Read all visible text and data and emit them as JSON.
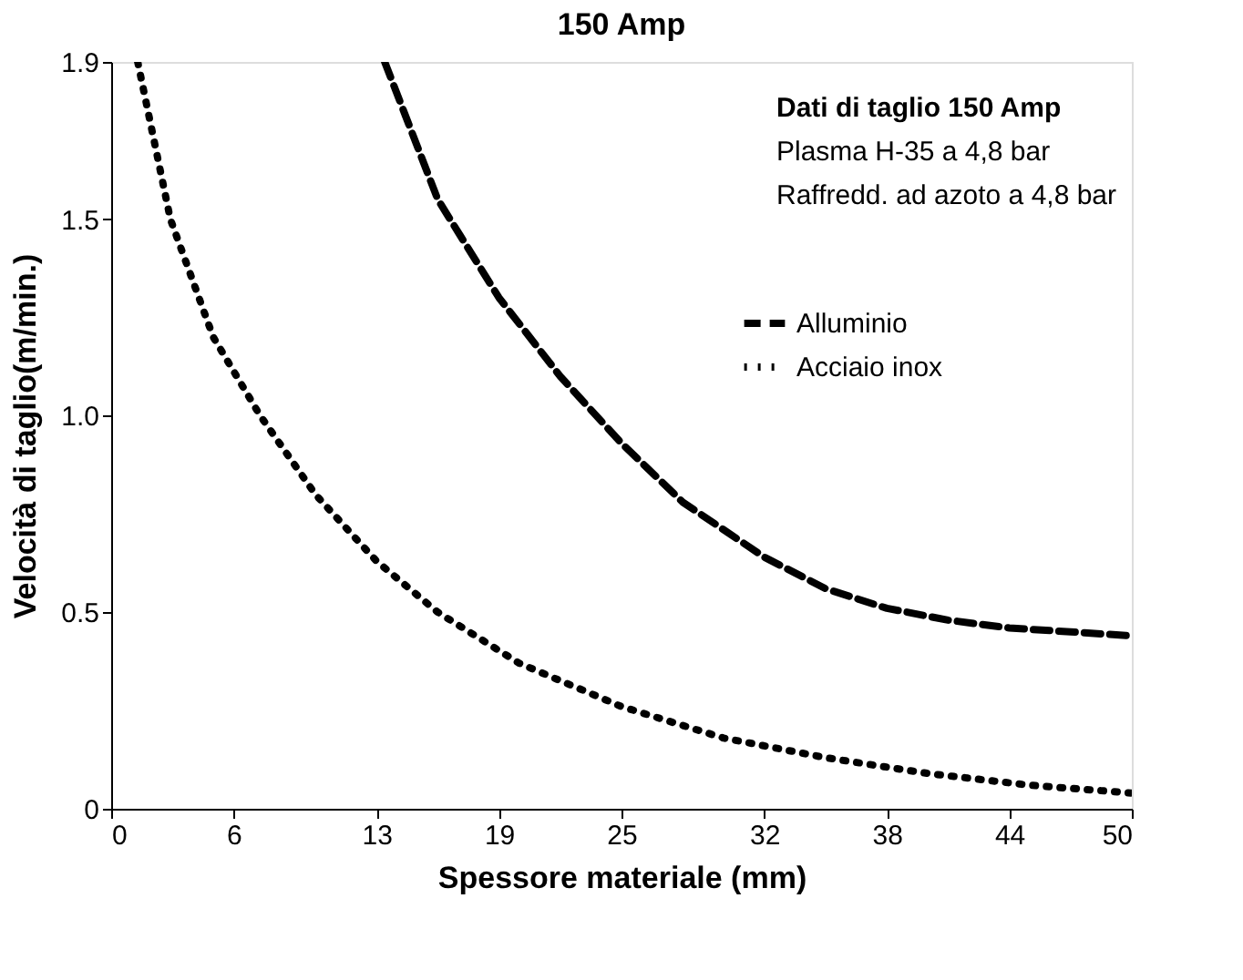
{
  "chart_data": {
    "type": "line",
    "title": "150 Amp",
    "xlabel": "Spessore materiale (mm)",
    "ylabel": "Velocità di taglio(m/min.)",
    "xlim": [
      0,
      50
    ],
    "ylim": [
      0,
      1.9
    ],
    "xticks": [
      0,
      6,
      13,
      19,
      25,
      32,
      38,
      44,
      50
    ],
    "yticks": [
      0,
      0.5,
      {
        "value": 1.0,
        "label": "1.0"
      },
      1.5,
      1.9
    ],
    "grid": false,
    "legend": "top right",
    "marker": "none",
    "annotations": [
      "Dati di taglio 150 Amp",
      "Plasma H-35  a 4,8 bar",
      "Raffredd. ad azoto a 4,8 bar"
    ],
    "series": [
      {
        "name": "Alluminio",
        "color": "#000000",
        "line_style": "dashed",
        "x": [
          13.4,
          16,
          19,
          22,
          25,
          28,
          32,
          35,
          38,
          41,
          44,
          47,
          50
        ],
        "values": [
          1.9,
          1.55,
          1.3,
          1.1,
          0.93,
          0.78,
          0.64,
          0.56,
          0.51,
          0.48,
          0.46,
          0.45,
          0.44
        ]
      },
      {
        "name": "Acciaio inox",
        "color": "#000000",
        "line_style": "dotted",
        "x": [
          1.3,
          2.9,
          5,
          7.3,
          10,
          13,
          16,
          20,
          25,
          30,
          35,
          40,
          45,
          50
        ],
        "values": [
          1.9,
          1.5,
          1.2,
          1.0,
          0.8,
          0.63,
          0.5,
          0.37,
          0.26,
          0.18,
          0.13,
          0.09,
          0.06,
          0.04
        ]
      }
    ]
  }
}
